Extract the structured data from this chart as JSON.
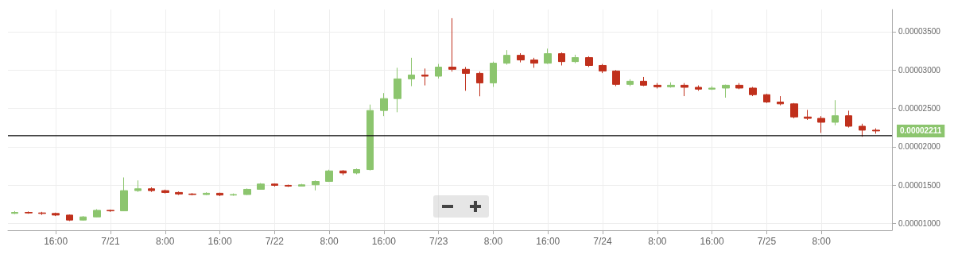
{
  "chart_data": {
    "type": "candlestick",
    "x": [
      "--07-20T10:00",
      "--07-20T12:00",
      "--07-20T14:00",
      "--07-20T16:00",
      "--07-20T18:00",
      "--07-20T20:00",
      "--07-20T22:00",
      "--07-21T00:00",
      "--07-21T02:00",
      "--07-21T04:00",
      "--07-21T06:00",
      "--07-21T08:00",
      "--07-21T10:00",
      "--07-21T12:00",
      "--07-21T14:00",
      "--07-21T16:00",
      "--07-21T18:00",
      "--07-21T20:00",
      "--07-21T22:00",
      "--07-22T00:00",
      "--07-22T02:00",
      "--07-22T04:00",
      "--07-22T06:00",
      "--07-22T08:00",
      "--07-22T10:00",
      "--07-22T12:00",
      "--07-22T14:00",
      "--07-22T16:00",
      "--07-22T18:00",
      "--07-22T20:00",
      "--07-22T22:00",
      "--07-23T00:00",
      "--07-23T02:00",
      "--07-23T04:00",
      "--07-23T06:00",
      "--07-23T08:00",
      "--07-23T10:00",
      "--07-23T12:00",
      "--07-23T14:00",
      "--07-23T16:00",
      "--07-23T18:00",
      "--07-23T20:00",
      "--07-23T22:00",
      "--07-24T00:00",
      "--07-24T02:00",
      "--07-24T04:00",
      "--07-24T06:00",
      "--07-24T08:00",
      "--07-24T10:00",
      "--07-24T12:00",
      "--07-24T14:00",
      "--07-24T16:00",
      "--07-24T18:00",
      "--07-24T20:00",
      "--07-24T22:00",
      "--07-25T00:00",
      "--07-25T02:00",
      "--07-25T04:00",
      "--07-25T06:00",
      "--07-25T08:00",
      "--07-25T10:00",
      "--07-25T12:00",
      "--07-25T14:00",
      "--07-25T16:00"
    ],
    "ohlc": [
      [
        1.13e-05,
        1.16e-05,
        1.12e-05,
        1.143e-05
      ],
      [
        1.143e-05,
        1.155e-05,
        1.125e-05,
        1.136e-05
      ],
      [
        1.136e-05,
        1.15e-05,
        1.11e-05,
        1.129e-05
      ],
      [
        1.129e-05,
        1.14e-05,
        1.095e-05,
        1.108e-05
      ],
      [
        1.108e-05,
        1.115e-05,
        1.03e-05,
        1.043e-05
      ],
      [
        1.043e-05,
        1.095e-05,
        1.035e-05,
        1.084e-05
      ],
      [
        1.084e-05,
        1.185e-05,
        1.08e-05,
        1.17e-05
      ],
      [
        1.17e-05,
        1.18e-05,
        1.15e-05,
        1.163e-05
      ],
      [
        1.163e-05,
        1.599e-05,
        1.16e-05,
        1.427e-05
      ],
      [
        1.427e-05,
        1.56e-05,
        1.41e-05,
        1.451e-05
      ],
      [
        1.451e-05,
        1.47e-05,
        1.41e-05,
        1.427e-05
      ],
      [
        1.427e-05,
        1.44e-05,
        1.39e-05,
        1.403e-05
      ],
      [
        1.403e-05,
        1.415e-05,
        1.37e-05,
        1.383e-05
      ],
      [
        1.383e-05,
        1.395e-05,
        1.365e-05,
        1.376e-05
      ],
      [
        1.376e-05,
        1.405e-05,
        1.37e-05,
        1.393e-05
      ],
      [
        1.393e-05,
        1.4e-05,
        1.355e-05,
        1.369e-05
      ],
      [
        1.369e-05,
        1.39e-05,
        1.36e-05,
        1.376e-05
      ],
      [
        1.376e-05,
        1.455e-05,
        1.37e-05,
        1.444e-05
      ],
      [
        1.444e-05,
        1.525e-05,
        1.44e-05,
        1.513e-05
      ],
      [
        1.513e-05,
        1.52e-05,
        1.48e-05,
        1.496e-05
      ],
      [
        1.496e-05,
        1.505e-05,
        1.475e-05,
        1.486e-05
      ],
      [
        1.486e-05,
        1.515e-05,
        1.48e-05,
        1.503e-05
      ],
      [
        1.503e-05,
        1.56e-05,
        1.43e-05,
        1.547e-05
      ],
      [
        1.547e-05,
        1.7e-05,
        1.54e-05,
        1.684e-05
      ],
      [
        1.684e-05,
        1.695e-05,
        1.63e-05,
        1.657e-05
      ],
      [
        1.657e-05,
        1.715e-05,
        1.64e-05,
        1.702e-05
      ],
      [
        1.702e-05,
        2.55e-05,
        1.69e-05,
        2.473e-05
      ],
      [
        2.473e-05,
        2.7e-05,
        2.4e-05,
        2.628e-05
      ],
      [
        2.628e-05,
        3.03e-05,
        2.45e-05,
        2.885e-05
      ],
      [
        2.885e-05,
        3.16e-05,
        2.79e-05,
        2.936e-05
      ],
      [
        2.936e-05,
        3.02e-05,
        2.8e-05,
        2.92e-05
      ],
      [
        2.92e-05,
        3.08e-05,
        2.89e-05,
        3.039e-05
      ],
      [
        3.039e-05,
        3.677e-05,
        2.98e-05,
        3.01e-05
      ],
      [
        3.01e-05,
        3.04e-05,
        2.73e-05,
        2.957e-05
      ],
      [
        2.957e-05,
        2.98e-05,
        2.658e-05,
        2.833e-05
      ],
      [
        2.833e-05,
        3.11e-05,
        2.78e-05,
        3.09e-05
      ],
      [
        3.09e-05,
        3.26e-05,
        3.07e-05,
        3.193e-05
      ],
      [
        3.193e-05,
        3.22e-05,
        3.1e-05,
        3.132e-05
      ],
      [
        3.132e-05,
        3.16e-05,
        3.03e-05,
        3.09e-05
      ],
      [
        3.09e-05,
        3.28e-05,
        3.08e-05,
        3.214e-05
      ],
      [
        3.214e-05,
        3.23e-05,
        3.06e-05,
        3.11e-05
      ],
      [
        3.11e-05,
        3.2e-05,
        3.09e-05,
        3.163e-05
      ],
      [
        3.163e-05,
        3.18e-05,
        3.04e-05,
        3.06e-05
      ],
      [
        3.06e-05,
        3.08e-05,
        2.96e-05,
        2.988e-05
      ],
      [
        2.988e-05,
        3e-05,
        2.79e-05,
        2.813e-05
      ],
      [
        2.813e-05,
        2.88e-05,
        2.79e-05,
        2.854e-05
      ],
      [
        2.854e-05,
        2.91e-05,
        2.79e-05,
        2.802e-05
      ],
      [
        2.802e-05,
        2.83e-05,
        2.76e-05,
        2.782e-05
      ],
      [
        2.782e-05,
        2.84e-05,
        2.77e-05,
        2.802e-05
      ],
      [
        2.802e-05,
        2.83e-05,
        2.66e-05,
        2.775e-05
      ],
      [
        2.775e-05,
        2.8e-05,
        2.73e-05,
        2.751e-05
      ],
      [
        2.751e-05,
        2.79e-05,
        2.74e-05,
        2.765e-05
      ],
      [
        2.765e-05,
        2.81e-05,
        2.64e-05,
        2.802e-05
      ],
      [
        2.802e-05,
        2.83e-05,
        2.75e-05,
        2.765e-05
      ],
      [
        2.765e-05,
        2.78e-05,
        2.66e-05,
        2.679e-05
      ],
      [
        2.679e-05,
        2.69e-05,
        2.57e-05,
        2.583e-05
      ],
      [
        2.583e-05,
        2.66e-05,
        2.54e-05,
        2.559e-05
      ],
      [
        2.559e-05,
        2.57e-05,
        2.37e-05,
        2.388e-05
      ],
      [
        2.388e-05,
        2.48e-05,
        2.35e-05,
        2.37e-05
      ],
      [
        2.37e-05,
        2.4e-05,
        2.18e-05,
        2.319e-05
      ],
      [
        2.319e-05,
        2.607e-05,
        2.28e-05,
        2.404e-05
      ],
      [
        2.404e-05,
        2.47e-05,
        2.25e-05,
        2.267e-05
      ],
      [
        2.267e-05,
        2.3e-05,
        2.13e-05,
        2.216e-05
      ],
      [
        2.216e-05,
        2.24e-05,
        2.17e-05,
        2.206e-05
      ]
    ],
    "xlim": [
      "--07-20T09:00",
      "--07-25T18:20"
    ],
    "xticks": [
      {
        "value": "--07-20T16:00",
        "label": "16:00"
      },
      {
        "value": "--07-21T00:00",
        "label": "7/21"
      },
      {
        "value": "--07-21T08:00",
        "label": "8:00"
      },
      {
        "value": "--07-21T16:00",
        "label": "16:00"
      },
      {
        "value": "--07-22T00:00",
        "label": "7/22"
      },
      {
        "value": "--07-22T08:00",
        "label": "8:00"
      },
      {
        "value": "--07-22T16:00",
        "label": "16:00"
      },
      {
        "value": "--07-23T00:00",
        "label": "7/23"
      },
      {
        "value": "--07-23T08:00",
        "label": "8:00"
      },
      {
        "value": "--07-23T16:00",
        "label": "16:00"
      },
      {
        "value": "--07-24T00:00",
        "label": "7/24"
      },
      {
        "value": "--07-24T08:00",
        "label": "8:00"
      },
      {
        "value": "--07-24T16:00",
        "label": "16:00"
      },
      {
        "value": "--07-25T00:00",
        "label": "7/25"
      },
      {
        "value": "--07-25T08:00",
        "label": "8:00"
      }
    ],
    "ylim": [
      9.1e-06,
      3.79e-05
    ],
    "yticks": [
      {
        "value": 1e-05,
        "label": "0.00001000"
      },
      {
        "value": 1.5e-05,
        "label": "0.00001500"
      },
      {
        "value": 2e-05,
        "label": "0.00002000"
      },
      {
        "value": 2.5e-05,
        "label": "0.00002500"
      },
      {
        "value": 3e-05,
        "label": "0.00003000"
      },
      {
        "value": 3.5e-05,
        "label": "0.00003500"
      }
    ],
    "ref_lines": [
      {
        "axis": "y",
        "value": 2.144e-05,
        "color": "#000000"
      }
    ],
    "annotations": [
      "0.00002211"
    ],
    "grid": true
  }
}
